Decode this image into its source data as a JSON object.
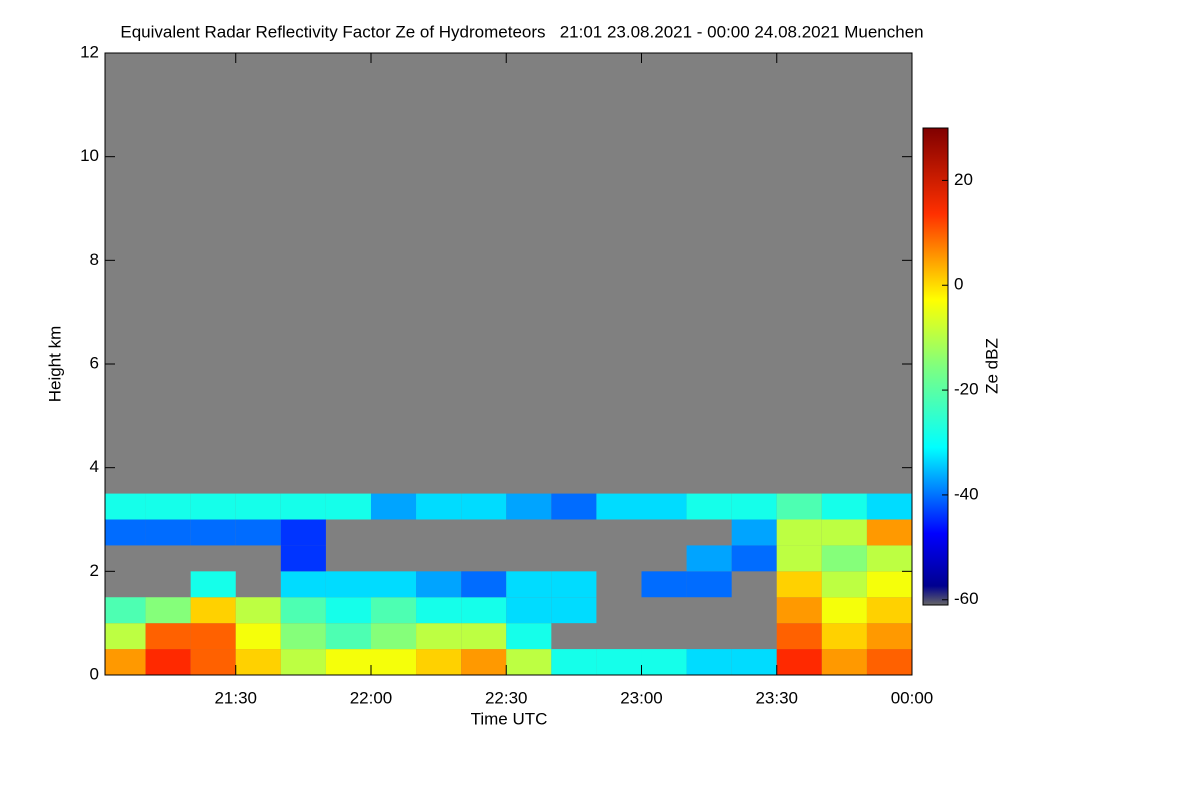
{
  "chart_data": {
    "type": "heatmap",
    "title": "Equivalent Radar Reflectivity Factor Ze of Hydrometeors   21:01 23.08.2021 - 00:00 24.08.2021 Muenchen",
    "xlabel": "Time UTC",
    "ylabel": "Height km",
    "colorbar_label": "Ze dBZ",
    "x": [
      21.0833,
      21.25,
      21.4167,
      21.5833,
      21.75,
      21.9167,
      22.0833,
      22.25,
      22.4167,
      22.5833,
      22.75,
      22.9167,
      23.0833,
      23.25,
      23.4167,
      23.5833,
      23.75,
      23.9167
    ],
    "y": [
      0.25,
      0.75,
      1.25,
      1.75,
      2.25,
      2.75,
      3.25
    ],
    "values": [
      [
        5,
        15,
        10,
        0,
        -10,
        -5,
        -5,
        0,
        5,
        -10,
        -25,
        -25,
        -25,
        -30,
        -30,
        15,
        5,
        10
      ],
      [
        -10,
        10,
        10,
        -5,
        -15,
        -20,
        -15,
        -10,
        -10,
        -25,
        null,
        null,
        null,
        null,
        null,
        10,
        0,
        5
      ],
      [
        -20,
        -15,
        0,
        -10,
        -20,
        -25,
        -20,
        -25,
        -25,
        -30,
        -30,
        null,
        null,
        null,
        null,
        5,
        -5,
        0
      ],
      [
        null,
        null,
        -25,
        null,
        -30,
        -30,
        -30,
        -35,
        -40,
        -30,
        -30,
        null,
        -40,
        -40,
        null,
        0,
        -10,
        -5
      ],
      [
        null,
        null,
        null,
        null,
        -45,
        null,
        null,
        null,
        null,
        null,
        null,
        null,
        null,
        -35,
        -40,
        -10,
        -15,
        -10
      ],
      [
        -40,
        -40,
        -40,
        -40,
        -45,
        null,
        null,
        null,
        null,
        null,
        null,
        null,
        null,
        null,
        -35,
        -10,
        -10,
        5
      ],
      [
        -25,
        -25,
        -25,
        -25,
        -25,
        -25,
        -35,
        -30,
        -30,
        -35,
        -40,
        -30,
        -30,
        -25,
        -25,
        -20,
        -25,
        -30
      ]
    ],
    "xlim": [
      21.0167,
      24
    ],
    "xticks": [
      {
        "value": 21.5,
        "label": "21:30"
      },
      {
        "value": 22,
        "label": "22:00"
      },
      {
        "value": 22.5,
        "label": "22:30"
      },
      {
        "value": 23,
        "label": "23:00"
      },
      {
        "value": 23.5,
        "label": "23:30"
      },
      {
        "value": 24,
        "label": "00:00"
      }
    ],
    "ylim": [
      0,
      12
    ],
    "yticks": [
      0,
      2,
      4,
      6,
      8,
      10,
      12
    ],
    "zlim": [
      -61,
      30
    ],
    "zticks": [
      -60,
      -40,
      -20,
      0,
      20
    ]
  }
}
